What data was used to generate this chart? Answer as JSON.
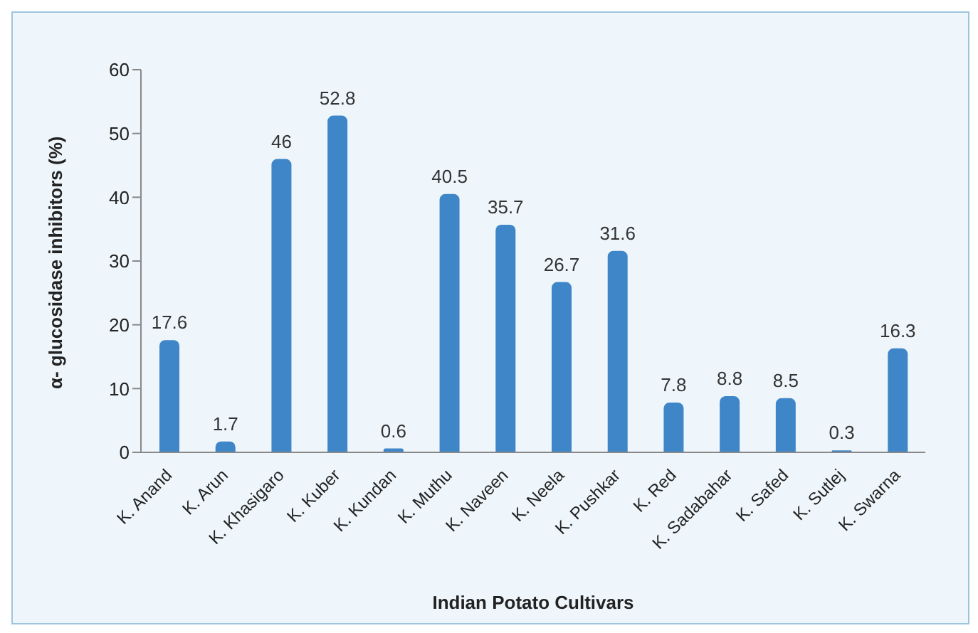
{
  "chart_data": {
    "type": "bar",
    "xlabel": "Indian Potato Cultivars",
    "ylabel": "α- glucosidase inhibitors (%)",
    "categories": [
      "K. Anand",
      "K. Arun",
      "K. Khasigaro",
      "K. Kuber",
      "K. Kundan",
      "K. Muthu",
      "K. Naveen",
      "K. Neela",
      "K. Pushkar",
      "K. Red",
      "K. Sadabahar",
      "K. Safed",
      "K. Sutlej",
      "K. Swarna"
    ],
    "values": [
      17.6,
      1.7,
      46,
      52.8,
      0.6,
      40.5,
      35.7,
      26.7,
      31.6,
      7.8,
      8.8,
      8.5,
      0.3,
      16.3
    ],
    "color": "#3f86c8",
    "ylim": [
      0,
      60
    ],
    "yticks": [
      0,
      10,
      20,
      30,
      40,
      50,
      60
    ],
    "grid": false,
    "data_labels": true
  }
}
